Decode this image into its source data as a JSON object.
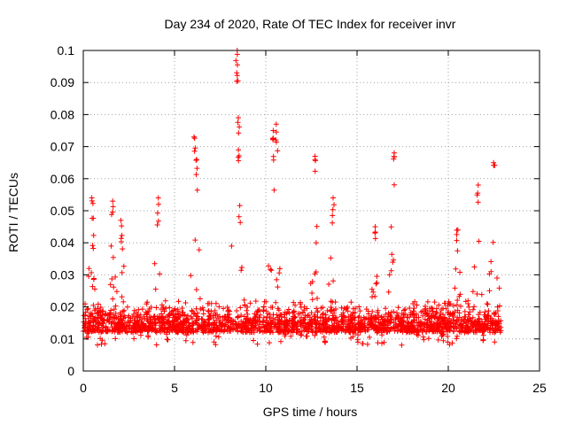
{
  "chart_data": {
    "type": "scatter",
    "title": "Day 234 of 2020, Rate Of TEC Index for receiver invr",
    "xlabel": "GPS time / hours",
    "ylabel": "ROTI / TECUs",
    "xlim": [
      0,
      25
    ],
    "ylim": [
      0,
      0.1
    ],
    "xticks": [
      0,
      5,
      10,
      15,
      20,
      25
    ],
    "xtick_labels": [
      "0",
      "5",
      "10",
      "15",
      "20",
      "25"
    ],
    "yticks": [
      0,
      0.01,
      0.02,
      0.03,
      0.04,
      0.05,
      0.06,
      0.07,
      0.08,
      0.09,
      0.1
    ],
    "ytick_labels": [
      "0",
      "0.01",
      "0.02",
      "0.03",
      "0.04",
      "0.05",
      "0.06",
      "0.07",
      "0.08",
      "0.09",
      "0.1"
    ],
    "grid": true,
    "marker": "+",
    "color": "#ff0000",
    "data_range_x": [
      0,
      22.9
    ],
    "peaks": [
      {
        "x": 0.5,
        "y": 0.054
      },
      {
        "x": 1.6,
        "y": 0.053
      },
      {
        "x": 2.1,
        "y": 0.047
      },
      {
        "x": 4.1,
        "y": 0.054
      },
      {
        "x": 6.1,
        "y": 0.073
      },
      {
        "x": 6.2,
        "y": 0.066
      },
      {
        "x": 8.4,
        "y": 0.1
      },
      {
        "x": 8.45,
        "y": 0.093
      },
      {
        "x": 8.5,
        "y": 0.079
      },
      {
        "x": 8.5,
        "y": 0.069
      },
      {
        "x": 10.4,
        "y": 0.075
      },
      {
        "x": 10.6,
        "y": 0.077
      },
      {
        "x": 12.7,
        "y": 0.067
      },
      {
        "x": 13.7,
        "y": 0.054
      },
      {
        "x": 16.0,
        "y": 0.045
      },
      {
        "x": 17.0,
        "y": 0.068
      },
      {
        "x": 20.5,
        "y": 0.044
      },
      {
        "x": 21.6,
        "y": 0.058
      },
      {
        "x": 22.5,
        "y": 0.065
      }
    ]
  }
}
